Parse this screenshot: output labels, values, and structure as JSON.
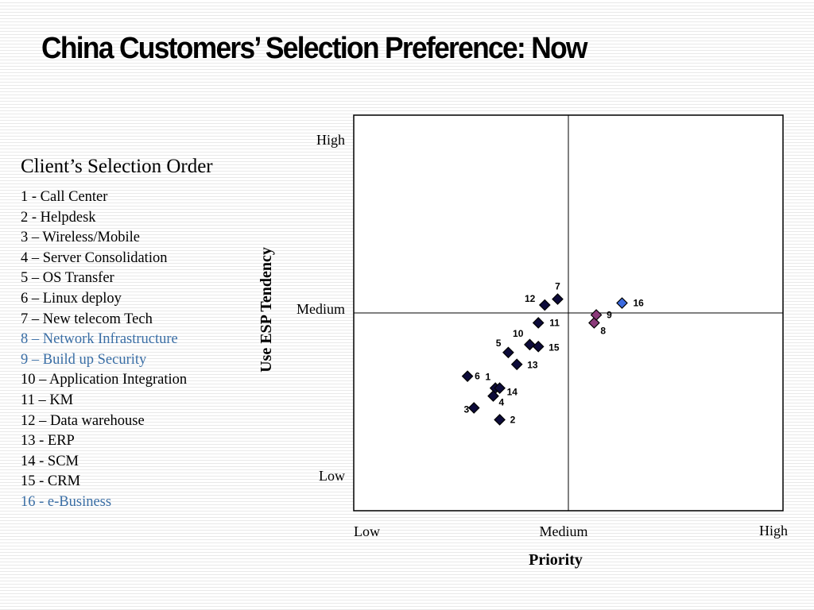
{
  "slide": {
    "title": "China Customers’ Selection Preference: Now"
  },
  "legend": {
    "heading": "Client’s Selection Order",
    "items": [
      {
        "text": "1 - Call Center",
        "accent": false
      },
      {
        "text": "2 - Helpdesk",
        "accent": false
      },
      {
        "text": "3 – Wireless/Mobile",
        "accent": false
      },
      {
        "text": "4 – Server Consolidation",
        "accent": false
      },
      {
        "text": "5 – OS Transfer",
        "accent": false
      },
      {
        "text": "6 – Linux deploy",
        "accent": false
      },
      {
        "text": "7 – New telecom Tech",
        "accent": false
      },
      {
        "text": "8 – Network Infrastructure",
        "accent": true
      },
      {
        "text": "9 – Build up Security",
        "accent": true
      },
      {
        "text": "10 – Application Integration",
        "accent": false
      },
      {
        "text": "11 – KM",
        "accent": false
      },
      {
        "text": "12 – Data warehouse",
        "accent": false
      },
      {
        "text": "13 - ERP",
        "accent": false
      },
      {
        "text": "14 - SCM",
        "accent": false
      },
      {
        "text": "15 - CRM",
        "accent": false
      },
      {
        "text": "16 - e-Business",
        "accent": true
      }
    ]
  },
  "colors": {
    "accent_text": "#3a6ea5",
    "default_marker": "#0d0b3a",
    "purple_marker": "#8b3a7a",
    "blue_marker": "#3c6be0"
  },
  "chart_data": {
    "type": "scatter",
    "title": "",
    "xlabel": "Priority",
    "ylabel": "Use ESP Tendency",
    "xlim": [
      0,
      1
    ],
    "ylim": [
      0,
      1
    ],
    "x_ticks": [
      {
        "label": "Low",
        "value": 0.0
      },
      {
        "label": "Medium",
        "value": 0.5
      },
      {
        "label": "High",
        "value": 1.0
      }
    ],
    "y_ticks": [
      {
        "label": "High",
        "value": 1.0
      },
      {
        "label": "Medium",
        "value": 0.5
      },
      {
        "label": "Low",
        "value": 0.0
      }
    ],
    "quadrant_lines": {
      "x": 0.5,
      "y": 0.5
    },
    "grid": false,
    "points": [
      {
        "id": "1",
        "x": 0.33,
        "y": 0.31,
        "color": "default"
      },
      {
        "id": "2",
        "x": 0.34,
        "y": 0.23,
        "color": "default"
      },
      {
        "id": "3",
        "x": 0.28,
        "y": 0.26,
        "color": "default"
      },
      {
        "id": "4",
        "x": 0.325,
        "y": 0.29,
        "color": "default"
      },
      {
        "id": "5",
        "x": 0.36,
        "y": 0.4,
        "color": "default"
      },
      {
        "id": "6",
        "x": 0.265,
        "y": 0.34,
        "color": "default"
      },
      {
        "id": "7",
        "x": 0.475,
        "y": 0.535,
        "color": "default"
      },
      {
        "id": "8",
        "x": 0.56,
        "y": 0.475,
        "color": "purple"
      },
      {
        "id": "9",
        "x": 0.565,
        "y": 0.495,
        "color": "purple"
      },
      {
        "id": "10",
        "x": 0.41,
        "y": 0.42,
        "color": "default"
      },
      {
        "id": "11",
        "x": 0.43,
        "y": 0.475,
        "color": "default"
      },
      {
        "id": "12",
        "x": 0.445,
        "y": 0.52,
        "color": "default"
      },
      {
        "id": "13",
        "x": 0.38,
        "y": 0.37,
        "color": "default"
      },
      {
        "id": "14",
        "x": 0.34,
        "y": 0.31,
        "color": "default"
      },
      {
        "id": "15",
        "x": 0.43,
        "y": 0.415,
        "color": "default"
      },
      {
        "id": "16",
        "x": 0.625,
        "y": 0.525,
        "color": "blue"
      }
    ]
  }
}
